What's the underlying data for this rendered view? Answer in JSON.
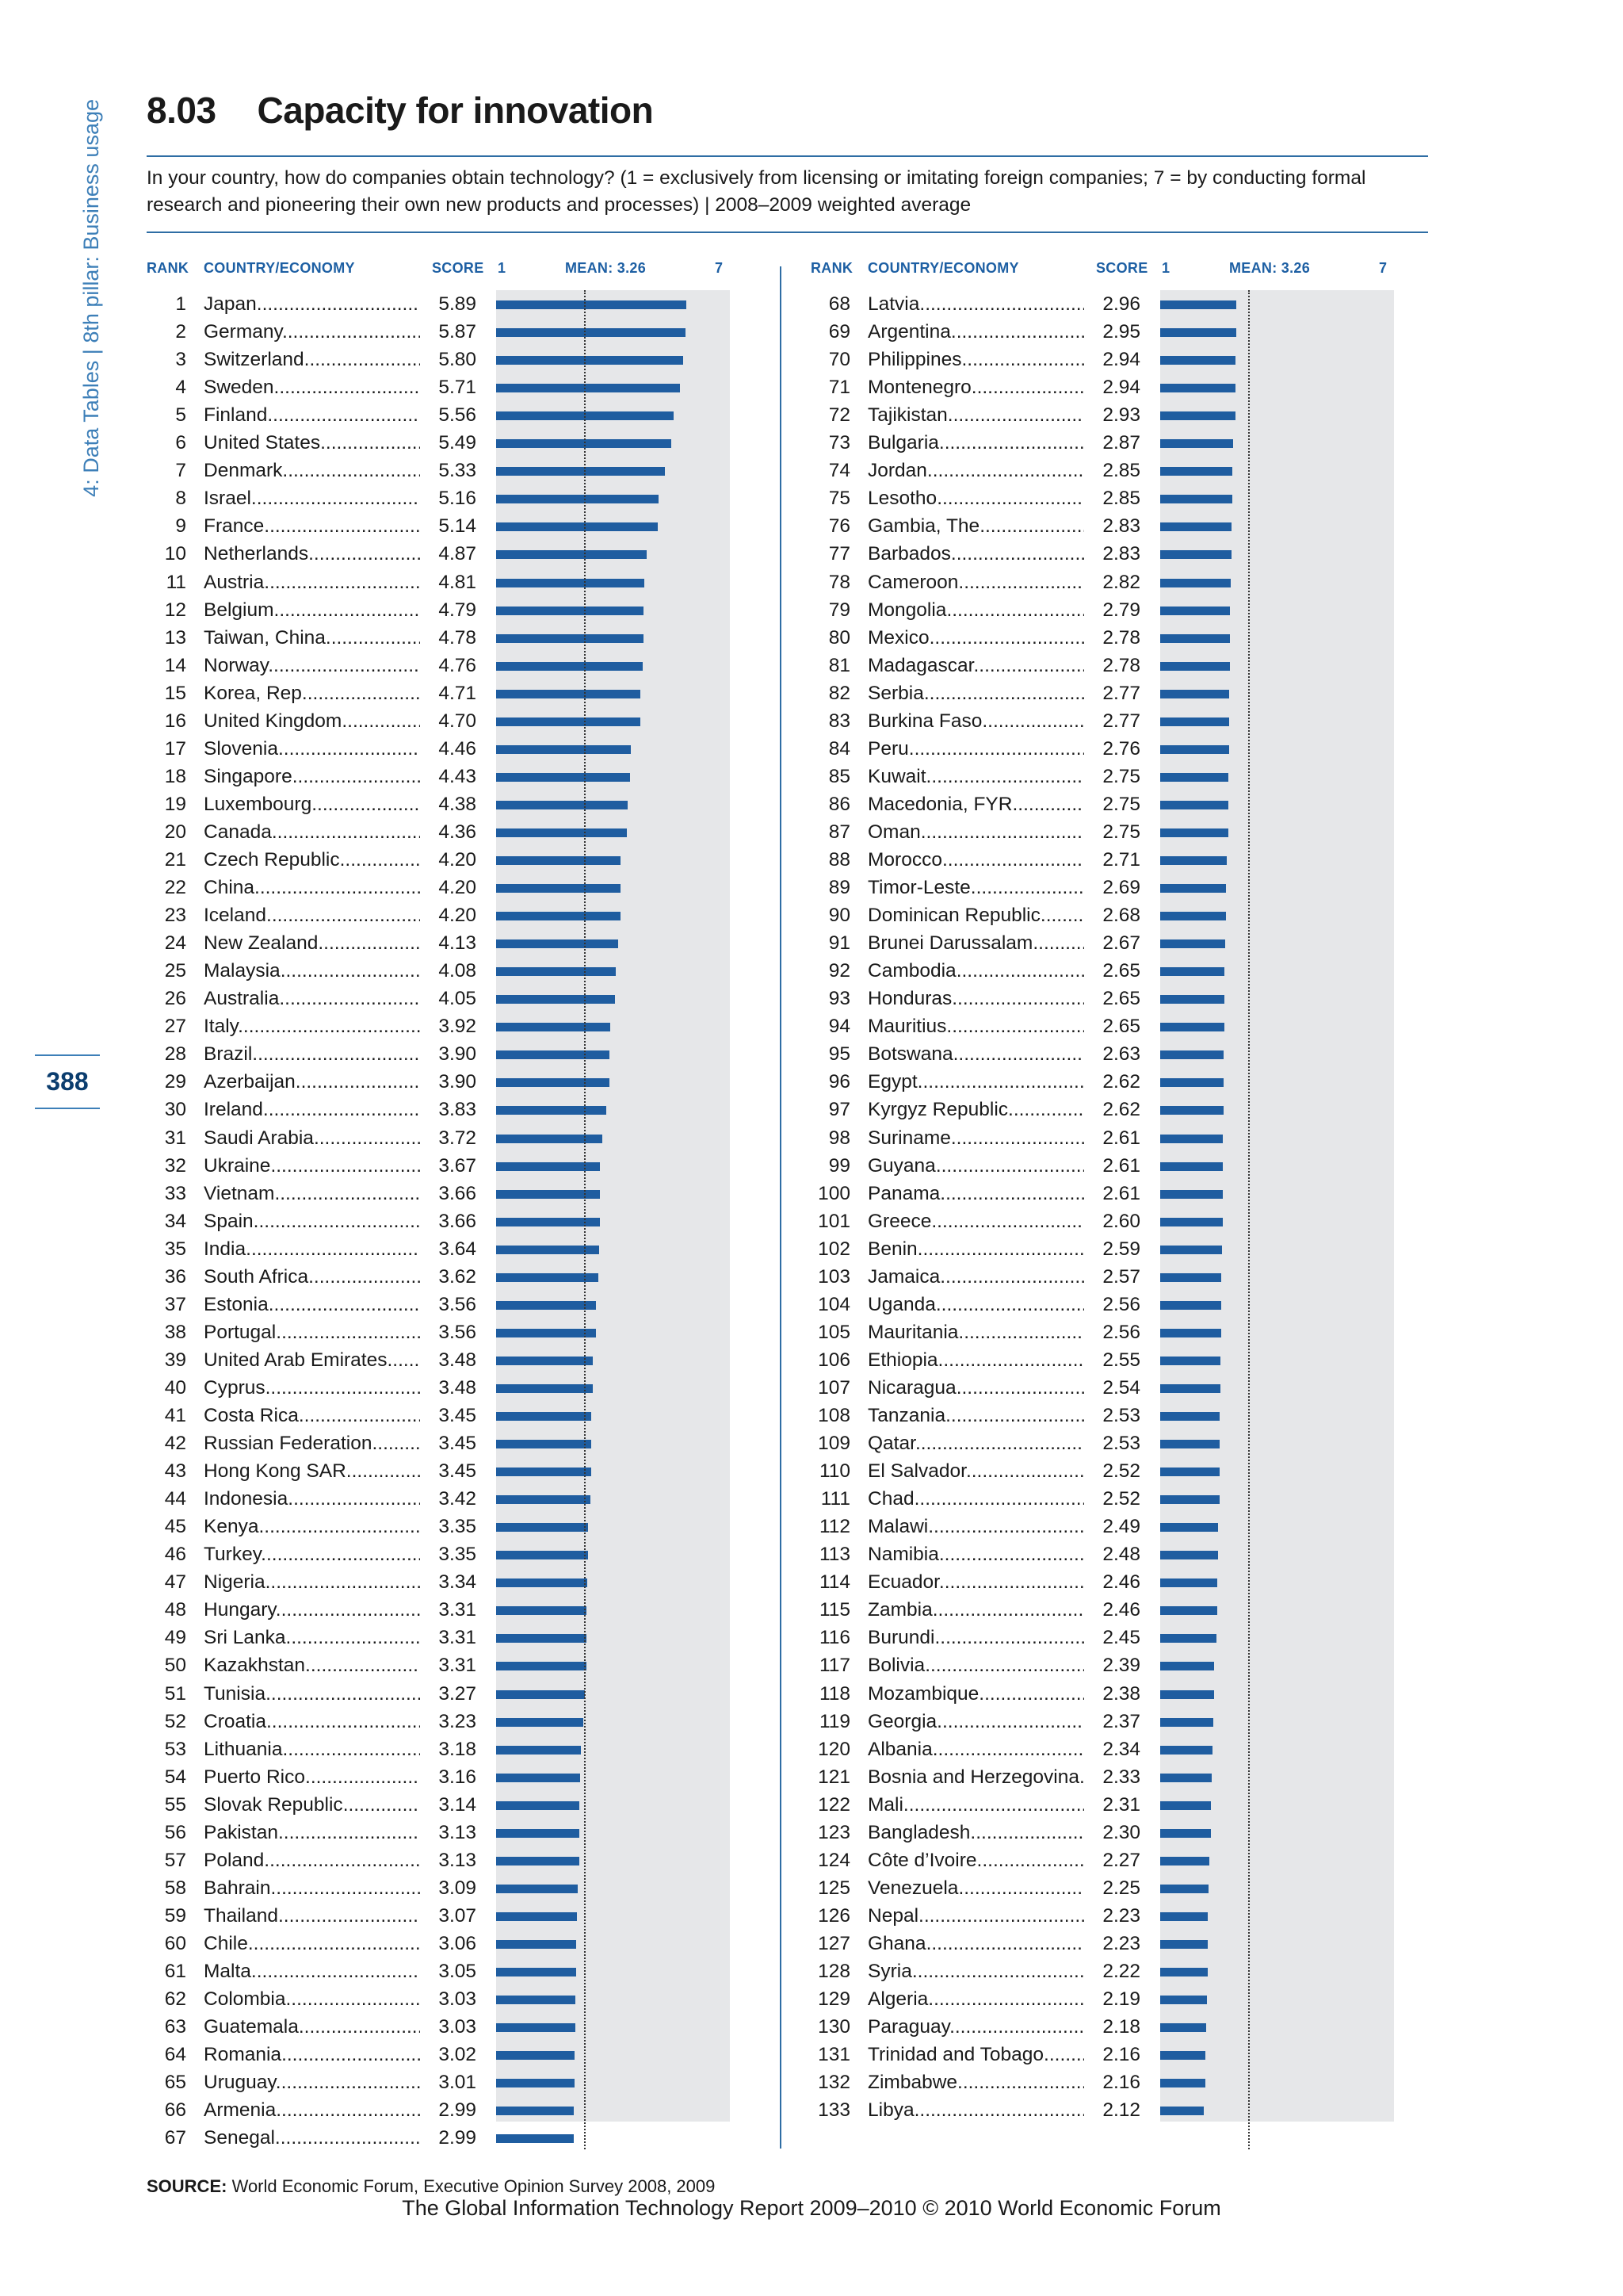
{
  "sidebar": {
    "text": "4: Data Tables  |  8th pillar: Business usage",
    "page_number": "388"
  },
  "header": {
    "number": "8.03",
    "title": "Capacity for innovation",
    "question": "In your country, how do companies obtain technology? (1 = exclusively from licensing or imitating foreign companies; 7 = by conducting formal research and pioneering their own new products and processes)  |  2008–2009 weighted average"
  },
  "columns": {
    "rank": "RANK",
    "country": "COUNTRY/ECONOMY",
    "score": "SCORE",
    "scale_min": "1",
    "mean": "MEAN: 3.26",
    "scale_max": "7"
  },
  "chart_data": {
    "type": "bar",
    "orientation": "horizontal",
    "xlim": [
      1,
      7
    ],
    "mean": 3.26,
    "grid": false,
    "rows": [
      {
        "rank": "1",
        "country": "Japan",
        "score": "5.89"
      },
      {
        "rank": "2",
        "country": "Germany",
        "score": "5.87"
      },
      {
        "rank": "3",
        "country": "Switzerland",
        "score": "5.80"
      },
      {
        "rank": "4",
        "country": "Sweden",
        "score": "5.71"
      },
      {
        "rank": "5",
        "country": "Finland",
        "score": "5.56"
      },
      {
        "rank": "6",
        "country": "United States",
        "score": "5.49"
      },
      {
        "rank": "7",
        "country": "Denmark",
        "score": "5.33"
      },
      {
        "rank": "8",
        "country": "Israel",
        "score": "5.16"
      },
      {
        "rank": "9",
        "country": "France",
        "score": "5.14"
      },
      {
        "rank": "10",
        "country": "Netherlands",
        "score": "4.87"
      },
      {
        "rank": "11",
        "country": "Austria",
        "score": "4.81"
      },
      {
        "rank": "12",
        "country": "Belgium",
        "score": "4.79"
      },
      {
        "rank": "13",
        "country": "Taiwan, China",
        "score": "4.78"
      },
      {
        "rank": "14",
        "country": "Norway",
        "score": "4.76"
      },
      {
        "rank": "15",
        "country": "Korea, Rep.",
        "score": "4.71"
      },
      {
        "rank": "16",
        "country": "United Kingdom",
        "score": "4.70"
      },
      {
        "rank": "17",
        "country": "Slovenia",
        "score": "4.46"
      },
      {
        "rank": "18",
        "country": "Singapore",
        "score": "4.43"
      },
      {
        "rank": "19",
        "country": "Luxembourg",
        "score": "4.38"
      },
      {
        "rank": "20",
        "country": "Canada",
        "score": "4.36"
      },
      {
        "rank": "21",
        "country": "Czech Republic",
        "score": "4.20"
      },
      {
        "rank": "22",
        "country": "China",
        "score": "4.20"
      },
      {
        "rank": "23",
        "country": "Iceland",
        "score": "4.20"
      },
      {
        "rank": "24",
        "country": "New Zealand",
        "score": "4.13"
      },
      {
        "rank": "25",
        "country": "Malaysia",
        "score": "4.08"
      },
      {
        "rank": "26",
        "country": "Australia",
        "score": "4.05"
      },
      {
        "rank": "27",
        "country": "Italy",
        "score": "3.92"
      },
      {
        "rank": "28",
        "country": "Brazil",
        "score": "3.90"
      },
      {
        "rank": "29",
        "country": "Azerbaijan",
        "score": "3.90"
      },
      {
        "rank": "30",
        "country": "Ireland",
        "score": "3.83"
      },
      {
        "rank": "31",
        "country": "Saudi Arabia",
        "score": "3.72"
      },
      {
        "rank": "32",
        "country": "Ukraine",
        "score": "3.67"
      },
      {
        "rank": "33",
        "country": "Vietnam",
        "score": "3.66"
      },
      {
        "rank": "34",
        "country": "Spain",
        "score": "3.66"
      },
      {
        "rank": "35",
        "country": "India",
        "score": "3.64"
      },
      {
        "rank": "36",
        "country": "South Africa",
        "score": "3.62"
      },
      {
        "rank": "37",
        "country": "Estonia",
        "score": "3.56"
      },
      {
        "rank": "38",
        "country": "Portugal",
        "score": "3.56"
      },
      {
        "rank": "39",
        "country": "United Arab Emirates",
        "score": "3.48"
      },
      {
        "rank": "40",
        "country": "Cyprus",
        "score": "3.48"
      },
      {
        "rank": "41",
        "country": "Costa Rica",
        "score": "3.45"
      },
      {
        "rank": "42",
        "country": "Russian Federation",
        "score": "3.45"
      },
      {
        "rank": "43",
        "country": "Hong Kong SAR",
        "score": "3.45"
      },
      {
        "rank": "44",
        "country": "Indonesia",
        "score": "3.42"
      },
      {
        "rank": "45",
        "country": "Kenya",
        "score": "3.35"
      },
      {
        "rank": "46",
        "country": "Turkey",
        "score": "3.35"
      },
      {
        "rank": "47",
        "country": "Nigeria",
        "score": "3.34"
      },
      {
        "rank": "48",
        "country": "Hungary",
        "score": "3.31"
      },
      {
        "rank": "49",
        "country": "Sri Lanka",
        "score": "3.31"
      },
      {
        "rank": "50",
        "country": "Kazakhstan",
        "score": "3.31"
      },
      {
        "rank": "51",
        "country": "Tunisia",
        "score": "3.27"
      },
      {
        "rank": "52",
        "country": "Croatia",
        "score": "3.23"
      },
      {
        "rank": "53",
        "country": "Lithuania",
        "score": "3.18"
      },
      {
        "rank": "54",
        "country": "Puerto Rico",
        "score": "3.16"
      },
      {
        "rank": "55",
        "country": "Slovak Republic",
        "score": "3.14"
      },
      {
        "rank": "56",
        "country": "Pakistan",
        "score": "3.13"
      },
      {
        "rank": "57",
        "country": "Poland",
        "score": "3.13"
      },
      {
        "rank": "58",
        "country": "Bahrain",
        "score": "3.09"
      },
      {
        "rank": "59",
        "country": "Thailand",
        "score": "3.07"
      },
      {
        "rank": "60",
        "country": "Chile",
        "score": "3.06"
      },
      {
        "rank": "61",
        "country": "Malta",
        "score": "3.05"
      },
      {
        "rank": "62",
        "country": "Colombia",
        "score": "3.03"
      },
      {
        "rank": "63",
        "country": "Guatemala",
        "score": "3.03"
      },
      {
        "rank": "64",
        "country": "Romania",
        "score": "3.02"
      },
      {
        "rank": "65",
        "country": "Uruguay",
        "score": "3.01"
      },
      {
        "rank": "66",
        "country": "Armenia",
        "score": "2.99"
      },
      {
        "rank": "67",
        "country": "Senegal",
        "score": "2.99"
      },
      {
        "rank": "68",
        "country": "Latvia",
        "score": "2.96"
      },
      {
        "rank": "69",
        "country": "Argentina",
        "score": "2.95"
      },
      {
        "rank": "70",
        "country": "Philippines",
        "score": "2.94"
      },
      {
        "rank": "71",
        "country": "Montenegro",
        "score": "2.94"
      },
      {
        "rank": "72",
        "country": "Tajikistan",
        "score": "2.93"
      },
      {
        "rank": "73",
        "country": "Bulgaria",
        "score": "2.87"
      },
      {
        "rank": "74",
        "country": "Jordan",
        "score": "2.85"
      },
      {
        "rank": "75",
        "country": "Lesotho",
        "score": "2.85"
      },
      {
        "rank": "76",
        "country": "Gambia, The",
        "score": "2.83"
      },
      {
        "rank": "77",
        "country": "Barbados",
        "score": "2.83"
      },
      {
        "rank": "78",
        "country": "Cameroon",
        "score": "2.82"
      },
      {
        "rank": "79",
        "country": "Mongolia",
        "score": "2.79"
      },
      {
        "rank": "80",
        "country": "Mexico",
        "score": "2.78"
      },
      {
        "rank": "81",
        "country": "Madagascar",
        "score": "2.78"
      },
      {
        "rank": "82",
        "country": "Serbia",
        "score": "2.77"
      },
      {
        "rank": "83",
        "country": "Burkina Faso",
        "score": "2.77"
      },
      {
        "rank": "84",
        "country": "Peru",
        "score": "2.76"
      },
      {
        "rank": "85",
        "country": "Kuwait",
        "score": "2.75"
      },
      {
        "rank": "86",
        "country": "Macedonia, FYR",
        "score": "2.75"
      },
      {
        "rank": "87",
        "country": "Oman",
        "score": "2.75"
      },
      {
        "rank": "88",
        "country": "Morocco",
        "score": "2.71"
      },
      {
        "rank": "89",
        "country": "Timor-Leste",
        "score": "2.69"
      },
      {
        "rank": "90",
        "country": "Dominican Republic",
        "score": "2.68"
      },
      {
        "rank": "91",
        "country": "Brunei Darussalam",
        "score": "2.67"
      },
      {
        "rank": "92",
        "country": "Cambodia",
        "score": "2.65"
      },
      {
        "rank": "93",
        "country": "Honduras",
        "score": "2.65"
      },
      {
        "rank": "94",
        "country": "Mauritius",
        "score": "2.65"
      },
      {
        "rank": "95",
        "country": "Botswana",
        "score": "2.63"
      },
      {
        "rank": "96",
        "country": "Egypt",
        "score": "2.62"
      },
      {
        "rank": "97",
        "country": "Kyrgyz Republic",
        "score": "2.62"
      },
      {
        "rank": "98",
        "country": "Suriname",
        "score": "2.61"
      },
      {
        "rank": "99",
        "country": "Guyana",
        "score": "2.61"
      },
      {
        "rank": "100",
        "country": "Panama",
        "score": "2.61"
      },
      {
        "rank": "101",
        "country": "Greece",
        "score": "2.60"
      },
      {
        "rank": "102",
        "country": "Benin",
        "score": "2.59"
      },
      {
        "rank": "103",
        "country": "Jamaica",
        "score": "2.57"
      },
      {
        "rank": "104",
        "country": "Uganda",
        "score": "2.56"
      },
      {
        "rank": "105",
        "country": "Mauritania",
        "score": "2.56"
      },
      {
        "rank": "106",
        "country": "Ethiopia",
        "score": "2.55"
      },
      {
        "rank": "107",
        "country": "Nicaragua",
        "score": "2.54"
      },
      {
        "rank": "108",
        "country": "Tanzania",
        "score": "2.53"
      },
      {
        "rank": "109",
        "country": "Qatar",
        "score": "2.53"
      },
      {
        "rank": "110",
        "country": "El Salvador",
        "score": "2.52"
      },
      {
        "rank": "111",
        "country": "Chad",
        "score": "2.52"
      },
      {
        "rank": "112",
        "country": "Malawi",
        "score": "2.49"
      },
      {
        "rank": "113",
        "country": "Namibia",
        "score": "2.48"
      },
      {
        "rank": "114",
        "country": "Ecuador",
        "score": "2.46"
      },
      {
        "rank": "115",
        "country": "Zambia",
        "score": "2.46"
      },
      {
        "rank": "116",
        "country": "Burundi",
        "score": "2.45"
      },
      {
        "rank": "117",
        "country": "Bolivia",
        "score": "2.39"
      },
      {
        "rank": "118",
        "country": "Mozambique",
        "score": "2.38"
      },
      {
        "rank": "119",
        "country": "Georgia",
        "score": "2.37"
      },
      {
        "rank": "120",
        "country": "Albania",
        "score": "2.34"
      },
      {
        "rank": "121",
        "country": "Bosnia and Herzegovina",
        "score": "2.33"
      },
      {
        "rank": "122",
        "country": "Mali",
        "score": "2.31"
      },
      {
        "rank": "123",
        "country": "Bangladesh",
        "score": "2.30"
      },
      {
        "rank": "124",
        "country": "Côte d’Ivoire",
        "score": "2.27"
      },
      {
        "rank": "125",
        "country": "Venezuela",
        "score": "2.25"
      },
      {
        "rank": "126",
        "country": "Nepal",
        "score": "2.23"
      },
      {
        "rank": "127",
        "country": "Ghana",
        "score": "2.23"
      },
      {
        "rank": "128",
        "country": "Syria",
        "score": "2.22"
      },
      {
        "rank": "129",
        "country": "Algeria",
        "score": "2.19"
      },
      {
        "rank": "130",
        "country": "Paraguay",
        "score": "2.18"
      },
      {
        "rank": "131",
        "country": "Trinidad and Tobago",
        "score": "2.16"
      },
      {
        "rank": "132",
        "country": "Zimbabwe",
        "score": "2.16"
      },
      {
        "rank": "133",
        "country": "Libya",
        "score": "2.12"
      }
    ]
  },
  "source": {
    "label": "SOURCE:",
    "text": "World Economic Forum, Executive Opinion Survey 2008, 2009"
  },
  "footer": "The Global Information Technology Report 2009–2010 © 2010 World Economic Forum",
  "colors": {
    "bar": "#1f5da0",
    "accent": "#2e6da4",
    "panel": "#e6e7e9"
  }
}
